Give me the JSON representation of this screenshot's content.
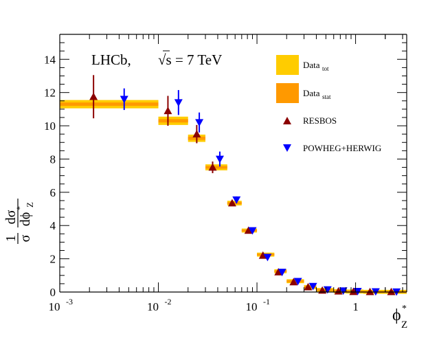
{
  "chart_data": {
    "type": "scatter",
    "title": "",
    "annotation": {
      "experiment": "LHCb,",
      "energy_prefix": "√s = 7 TeV"
    },
    "xlabel": {
      "base": "ϕ",
      "sup": "*",
      "sub": "Z"
    },
    "ylabel": {
      "frac1_num": "1",
      "frac1_den": "σ",
      "frac2_num": "dσ",
      "frac2_den": "dϕ",
      "den_sup": "*",
      "den_sub": "Z"
    },
    "xscale": "log",
    "xlim": [
      0.001,
      3.3
    ],
    "ylim": [
      0,
      15.5
    ],
    "x_ticks": [
      {
        "value": 0.001,
        "base": "10",
        "exp": "-3"
      },
      {
        "value": 0.01,
        "base": "10",
        "exp": "-2"
      },
      {
        "value": 0.1,
        "base": "10",
        "exp": "-1"
      },
      {
        "value": 1,
        "base": "1",
        "exp": ""
      }
    ],
    "y_ticks": [
      "0",
      "2",
      "4",
      "6",
      "8",
      "10",
      "12",
      "14"
    ],
    "legend": {
      "position": "top-right",
      "entries": [
        {
          "label": "Data",
          "sub": "tot",
          "marker": "box",
          "color": "#ffcc00"
        },
        {
          "label": "Data",
          "sub": "stat",
          "marker": "box",
          "color": "#ff9900"
        },
        {
          "label": "RESBOS",
          "sub": "",
          "marker": "triangle-up",
          "color": "#8b0000"
        },
        {
          "label": "POWHEG+HERWIG",
          "sub": "",
          "marker": "triangle-down",
          "color": "#0000ff"
        }
      ]
    },
    "series": [
      {
        "name": "Data",
        "tot_color": "#ffcc00",
        "stat_color": "#ff9900",
        "bins": [
          {
            "lo": 0.001,
            "hi": 0.01,
            "y": 11.3,
            "tot": 0.25,
            "stat": 0.1
          },
          {
            "lo": 0.01,
            "hi": 0.02,
            "y": 10.3,
            "tot": 0.25,
            "stat": 0.1
          },
          {
            "lo": 0.02,
            "hi": 0.03,
            "y": 9.25,
            "tot": 0.22,
            "stat": 0.1
          },
          {
            "lo": 0.03,
            "hi": 0.05,
            "y": 7.5,
            "tot": 0.18,
            "stat": 0.08
          },
          {
            "lo": 0.05,
            "hi": 0.07,
            "y": 5.35,
            "tot": 0.14,
            "stat": 0.06
          },
          {
            "lo": 0.07,
            "hi": 0.1,
            "y": 3.7,
            "tot": 0.1,
            "stat": 0.05
          },
          {
            "lo": 0.1,
            "hi": 0.15,
            "y": 2.25,
            "tot": 0.07,
            "stat": 0.04
          },
          {
            "lo": 0.15,
            "hi": 0.2,
            "y": 1.25,
            "tot": 0.05,
            "stat": 0.03
          },
          {
            "lo": 0.2,
            "hi": 0.3,
            "y": 0.65,
            "tot": 0.04,
            "stat": 0.02
          },
          {
            "lo": 0.3,
            "hi": 0.4,
            "y": 0.3,
            "tot": 0.03,
            "stat": 0.02
          },
          {
            "lo": 0.4,
            "hi": 0.6,
            "y": 0.12,
            "tot": 0.02,
            "stat": 0.01
          },
          {
            "lo": 0.6,
            "hi": 0.8,
            "y": 0.05,
            "tot": 0.01,
            "stat": 0.01
          },
          {
            "lo": 0.8,
            "hi": 1.2,
            "y": 0.03,
            "tot": 0.01,
            "stat": 0.01
          },
          {
            "lo": 1.2,
            "hi": 2.0,
            "y": 0.01,
            "tot": 0.01,
            "stat": 0.01
          },
          {
            "lo": 2.0,
            "hi": 3.3,
            "y": 0.01,
            "tot": 0.01,
            "stat": 0.01
          }
        ]
      },
      {
        "name": "RESBOS",
        "color": "#8b0000",
        "marker": "triangle-up",
        "points": [
          {
            "x": 0.0022,
            "y": 11.75,
            "err": 1.3
          },
          {
            "x": 0.0125,
            "y": 10.9,
            "err": 0.9
          },
          {
            "x": 0.0245,
            "y": 9.5,
            "err": 0.55
          },
          {
            "x": 0.0355,
            "y": 7.5,
            "err": 0.35
          },
          {
            "x": 0.056,
            "y": 5.35,
            "err": 0.1
          },
          {
            "x": 0.082,
            "y": 3.7,
            "err": 0.08
          },
          {
            "x": 0.115,
            "y": 2.2,
            "err": 0.06
          },
          {
            "x": 0.165,
            "y": 1.2,
            "err": 0.05
          },
          {
            "x": 0.235,
            "y": 0.6,
            "err": 0.04
          },
          {
            "x": 0.33,
            "y": 0.3,
            "err": 0.03
          },
          {
            "x": 0.46,
            "y": 0.1,
            "err": 0.02
          },
          {
            "x": 0.67,
            "y": 0.05,
            "err": 0.01
          },
          {
            "x": 0.95,
            "y": 0.02,
            "err": 0.01
          },
          {
            "x": 1.4,
            "y": 0.01,
            "err": 0.01
          },
          {
            "x": 2.3,
            "y": 0.01,
            "err": 0.01
          }
        ]
      },
      {
        "name": "POWHEG+HERWIG",
        "color": "#0000ff",
        "marker": "triangle-down",
        "points": [
          {
            "x": 0.0045,
            "y": 11.6,
            "err": 0.65
          },
          {
            "x": 0.016,
            "y": 11.4,
            "err": 0.75
          },
          {
            "x": 0.026,
            "y": 10.2,
            "err": 0.6
          },
          {
            "x": 0.042,
            "y": 8.0,
            "err": 0.45
          },
          {
            "x": 0.062,
            "y": 5.55,
            "err": 0.2
          },
          {
            "x": 0.09,
            "y": 3.7,
            "err": 0.08
          },
          {
            "x": 0.128,
            "y": 2.1,
            "err": 0.06
          },
          {
            "x": 0.18,
            "y": 1.2,
            "err": 0.05
          },
          {
            "x": 0.26,
            "y": 0.65,
            "err": 0.04
          },
          {
            "x": 0.37,
            "y": 0.35,
            "err": 0.03
          },
          {
            "x": 0.52,
            "y": 0.15,
            "err": 0.02
          },
          {
            "x": 0.75,
            "y": 0.08,
            "err": 0.01
          },
          {
            "x": 1.05,
            "y": 0.05,
            "err": 0.01
          },
          {
            "x": 1.6,
            "y": 0.03,
            "err": 0.01
          },
          {
            "x": 2.6,
            "y": 0.02,
            "err": 0.01
          }
        ]
      }
    ]
  }
}
